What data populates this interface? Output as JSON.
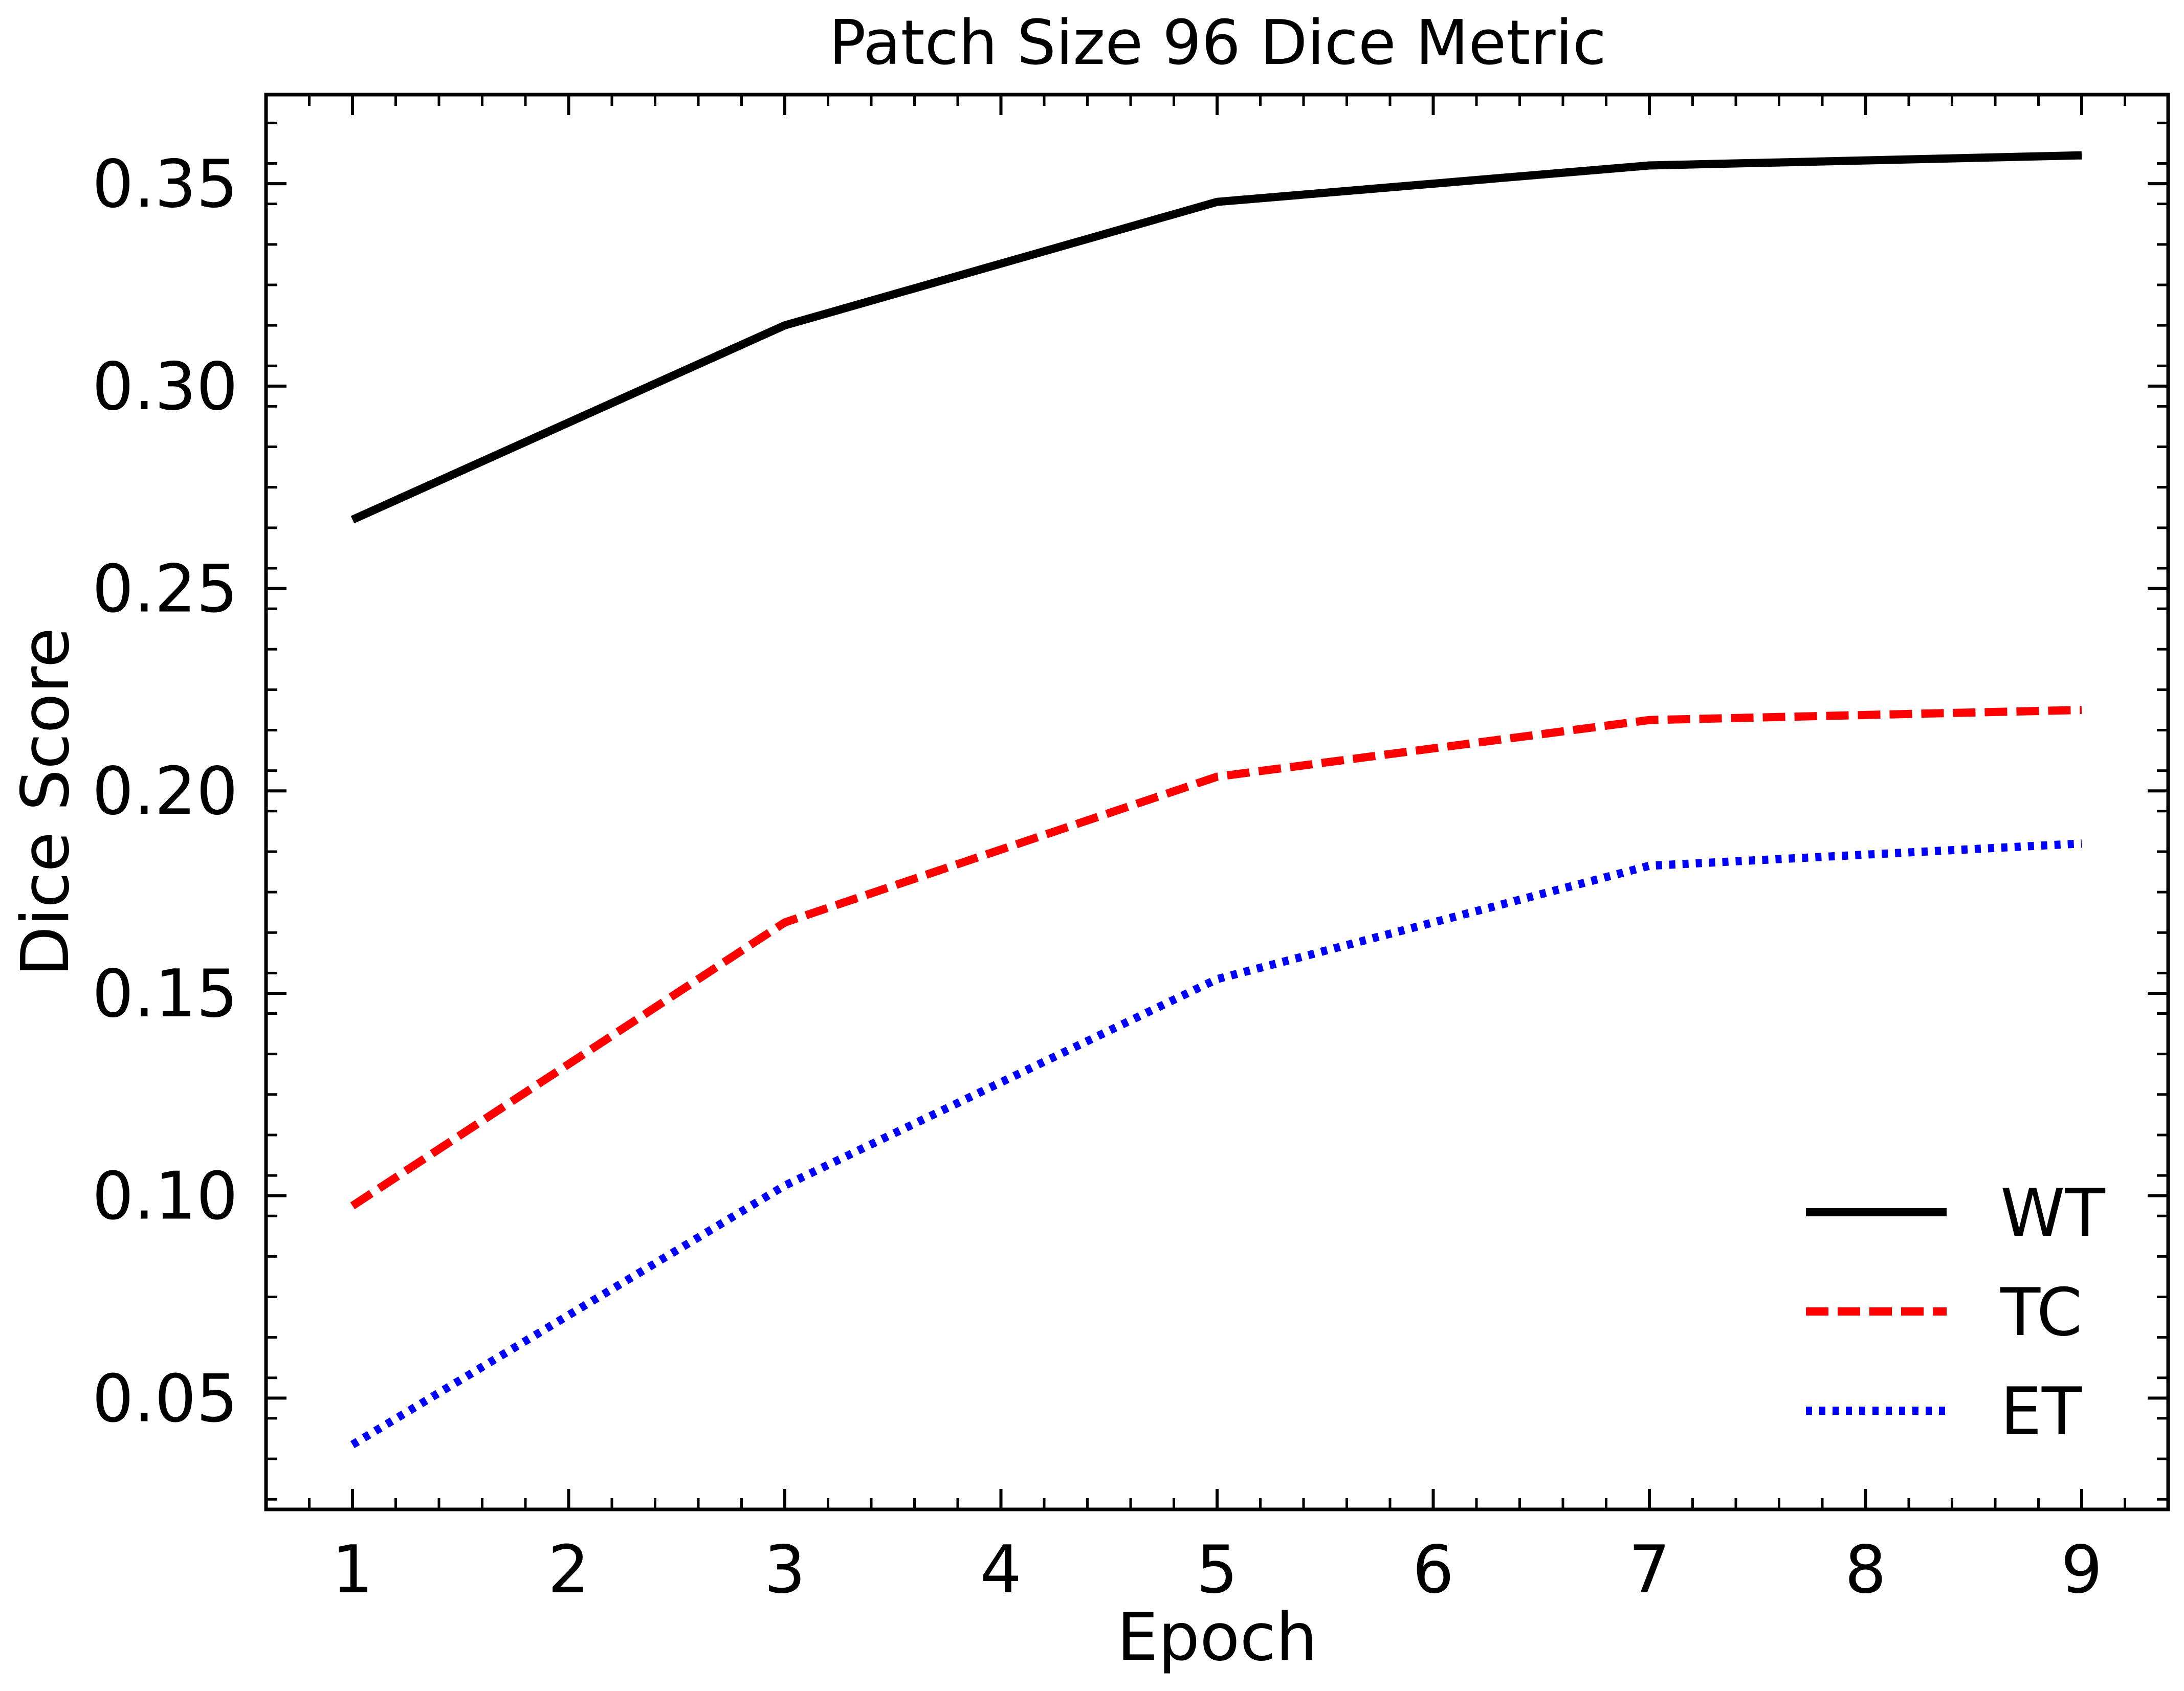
{
  "chart_data": {
    "type": "line",
    "title": "Patch Size 96 Dice Metric",
    "xlabel": "Epoch",
    "ylabel": "Dice Score",
    "xlim": [
      0.6,
      9.4
    ],
    "ylim": [
      0.0225,
      0.372
    ],
    "xticks": [
      1,
      2,
      3,
      4,
      5,
      6,
      7,
      8,
      9
    ],
    "xtick_labels": [
      "1",
      "2",
      "3",
      "4",
      "5",
      "6",
      "7",
      "8",
      "9"
    ],
    "yticks": [
      0.05,
      0.1,
      0.15,
      0.2,
      0.25,
      0.3,
      0.35
    ],
    "ytick_labels": [
      "0.05",
      "0.10",
      "0.15",
      "0.20",
      "0.25",
      "0.30",
      "0.35"
    ],
    "x": [
      1,
      3,
      5,
      7,
      9
    ],
    "series": [
      {
        "name": "WT",
        "values": [
          0.267,
          0.315,
          0.3455,
          0.3545,
          0.357
        ],
        "color": "#000000",
        "dash": "solid"
      },
      {
        "name": "TC",
        "values": [
          0.0975,
          0.1675,
          0.2035,
          0.2175,
          0.22
        ],
        "color": "#ff0000",
        "dash": "dashed"
      },
      {
        "name": "ET",
        "values": [
          0.0385,
          0.1025,
          0.1535,
          0.1815,
          0.187
        ],
        "color": "#0000ff",
        "dash": "dotted"
      }
    ],
    "legend": {
      "position": "lower-right"
    },
    "grid": false
  }
}
